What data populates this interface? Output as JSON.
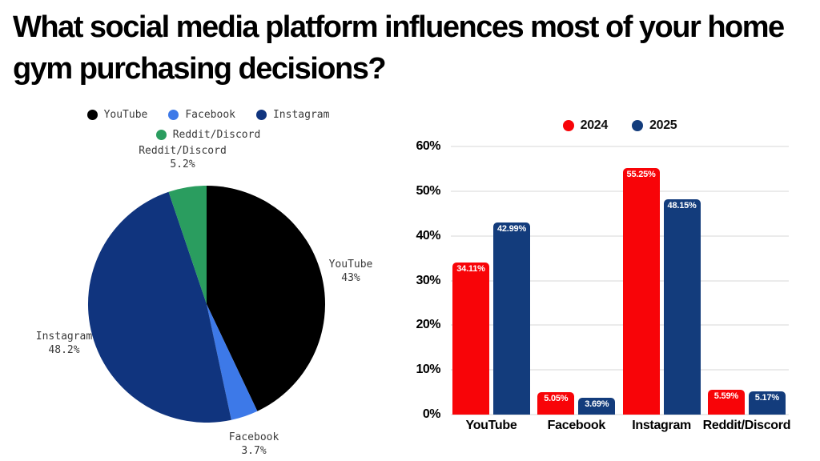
{
  "title": "What social media platform influences most of your home gym purchasing decisions?",
  "palette": {
    "background": "#ffffff",
    "title_text": "#000000",
    "pie_label_text": "#3a3a3a",
    "gridline": "#ebebeb",
    "bar_value_text": "#ffffff"
  },
  "chart_data": [
    {
      "type": "pie",
      "legend_position": "top",
      "legend_rows": 2,
      "slices": [
        {
          "label": "YouTube",
          "value": 43,
          "display": "43%",
          "color": "#000000"
        },
        {
          "label": "Facebook",
          "value": 3.7,
          "display": "3.7%",
          "color": "#3d79e8"
        },
        {
          "label": "Instagram",
          "value": 48.2,
          "display": "48.2%",
          "color": "#10347e"
        },
        {
          "label": "Reddit/Discord",
          "value": 5.2,
          "display": "5.2%",
          "color": "#2a9d5f"
        }
      ],
      "start_angle_deg": 0,
      "direction": "clockwise"
    },
    {
      "type": "bar",
      "legend_position": "top",
      "grid": true,
      "categories": [
        "YouTube",
        "Facebook",
        "Instagram",
        "Reddit/Discord"
      ],
      "series": [
        {
          "name": "2024",
          "color": "#f80408",
          "values": [
            34.11,
            5.05,
            55.25,
            5.59
          ],
          "display": [
            "34.11%",
            "5.05%",
            "55.25%",
            "5.59%"
          ]
        },
        {
          "name": "2025",
          "color": "#133c7c",
          "values": [
            42.99,
            3.69,
            48.15,
            5.17
          ],
          "display": [
            "42.99%",
            "3.69%",
            "48.15%",
            "5.17%"
          ]
        }
      ],
      "y_axis": {
        "min": 0,
        "max": 60,
        "tick_step": 10,
        "tick_labels": [
          "0%",
          "10%",
          "20%",
          "30%",
          "40%",
          "50%",
          "60%"
        ]
      },
      "value_labels": "inside-top"
    }
  ]
}
